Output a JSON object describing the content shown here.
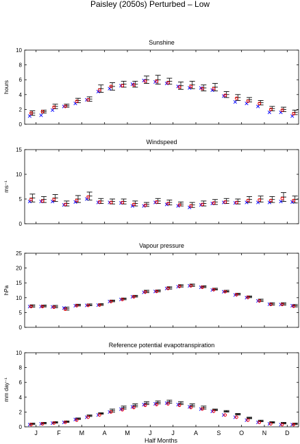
{
  "figure_title": "Paisley (2050s) Perturbed – Low",
  "x_axis_label": "Half Months",
  "month_labels": [
    "J",
    "F",
    "M",
    "A",
    "M",
    "J",
    "J",
    "A",
    "S",
    "O",
    "N",
    "D"
  ],
  "colors": {
    "observed": "#ff0000",
    "model": "#0000ff",
    "errorbar": "#000000"
  },
  "marker_styles": {
    "observed": "circle",
    "model": "cross",
    "errorbar": "error-bar"
  },
  "chart_data": [
    {
      "type": "scatter",
      "title": "Sunshine",
      "ylabel": "hours",
      "ylim": [
        0,
        10
      ],
      "yticks": [
        "0",
        "2",
        "4",
        "6",
        "8",
        "10"
      ],
      "x": [
        1,
        2,
        3,
        4,
        5,
        6,
        7,
        8,
        9,
        10,
        11,
        12,
        13,
        14,
        15,
        16,
        17,
        18,
        19,
        20,
        21,
        22,
        23,
        24
      ],
      "series": [
        {
          "values": [
            1.5,
            1.7,
            2.3,
            2.4,
            3.1,
            3.3,
            4.6,
            5.1,
            5.2,
            5.3,
            5.8,
            5.8,
            5.6,
            5.0,
            5.1,
            4.8,
            4.8,
            3.9,
            3.5,
            3.1,
            2.8,
            2.0,
            1.9,
            1.4
          ]
        },
        {
          "values": [
            1.1,
            1.2,
            1.9,
            2.4,
            2.8,
            3.3,
            4.4,
            4.8,
            5.2,
            5.4,
            5.9,
            5.7,
            5.5,
            5.1,
            4.9,
            4.9,
            4.6,
            3.8,
            3.0,
            2.8,
            2.4,
            1.6,
            1.6,
            1.1
          ]
        },
        {
          "values": [
            1.5,
            1.7,
            2.4,
            2.5,
            3.2,
            3.4,
            4.8,
            5.1,
            5.4,
            5.4,
            6.0,
            6.0,
            5.8,
            5.2,
            5.3,
            4.9,
            5.0,
            4.0,
            3.6,
            3.3,
            2.9,
            2.1,
            2.0,
            1.6
          ],
          "error": [
            0.3,
            0.2,
            0.3,
            0.2,
            0.3,
            0.3,
            0.5,
            0.5,
            0.4,
            0.4,
            0.5,
            0.6,
            0.4,
            0.5,
            0.5,
            0.4,
            0.5,
            0.4,
            0.4,
            0.3,
            0.3,
            0.3,
            0.3,
            0.3
          ]
        }
      ]
    },
    {
      "type": "scatter",
      "title": "Windspeed",
      "ylabel": "ms⁻¹",
      "ylim": [
        0,
        15
      ],
      "yticks": [
        "0",
        "5",
        "10",
        "15"
      ],
      "x": [
        1,
        2,
        3,
        4,
        5,
        6,
        7,
        8,
        9,
        10,
        11,
        12,
        13,
        14,
        15,
        16,
        17,
        18,
        19,
        20,
        21,
        22,
        23,
        24
      ],
      "series": [
        {
          "values": [
            4.9,
            4.6,
            4.9,
            3.9,
            4.7,
            5.4,
            4.4,
            4.3,
            4.3,
            3.9,
            3.7,
            4.4,
            4.1,
            3.8,
            3.6,
            3.9,
            4.2,
            4.4,
            4.3,
            4.7,
            4.8,
            4.7,
            5.1,
            4.7
          ]
        },
        {
          "values": [
            4.5,
            4.5,
            4.5,
            3.8,
            4.4,
            5.0,
            4.3,
            4.3,
            4.2,
            3.6,
            3.6,
            4.3,
            3.9,
            3.6,
            3.3,
            3.8,
            4.1,
            4.3,
            4.2,
            4.3,
            4.3,
            4.3,
            4.5,
            4.4
          ]
        },
        {
          "values": [
            5.2,
            4.9,
            5.2,
            4.1,
            5.0,
            5.6,
            4.6,
            4.5,
            4.5,
            4.1,
            3.9,
            4.6,
            4.3,
            4.0,
            3.8,
            4.1,
            4.4,
            4.6,
            4.5,
            4.9,
            5.0,
            4.9,
            5.4,
            4.9
          ],
          "error": [
            0.8,
            0.6,
            0.7,
            0.5,
            0.7,
            0.8,
            0.5,
            0.5,
            0.5,
            0.5,
            0.4,
            0.5,
            0.5,
            0.4,
            0.5,
            0.5,
            0.5,
            0.5,
            0.5,
            0.6,
            0.6,
            0.6,
            0.9,
            0.7
          ]
        }
      ]
    },
    {
      "type": "scatter",
      "title": "Vapour pressure",
      "ylabel": "hPa",
      "ylim": [
        0,
        25
      ],
      "yticks": [
        "0",
        "5",
        "10",
        "15",
        "20",
        "25"
      ],
      "x": [
        1,
        2,
        3,
        4,
        5,
        6,
        7,
        8,
        9,
        10,
        11,
        12,
        13,
        14,
        15,
        16,
        17,
        18,
        19,
        20,
        21,
        22,
        23,
        24
      ],
      "series": [
        {
          "values": [
            7.0,
            7.0,
            6.8,
            6.1,
            7.3,
            7.4,
            7.5,
            8.7,
            9.4,
            10.3,
            11.9,
            12.1,
            13.1,
            13.8,
            14.0,
            13.5,
            12.7,
            12.0,
            11.0,
            10.1,
            8.9,
            7.7,
            7.7,
            7.1
          ]
        },
        {
          "values": [
            7.0,
            7.0,
            6.9,
            6.5,
            7.3,
            7.4,
            7.5,
            8.7,
            9.4,
            10.3,
            11.8,
            12.1,
            13.1,
            13.7,
            14.0,
            13.5,
            12.6,
            12.0,
            10.9,
            10.0,
            8.9,
            7.8,
            7.7,
            7.3
          ]
        },
        {
          "values": [
            7.2,
            7.2,
            7.0,
            6.3,
            7.5,
            7.6,
            7.7,
            8.9,
            9.6,
            10.5,
            12.1,
            12.3,
            13.3,
            14.0,
            14.2,
            13.7,
            12.9,
            12.2,
            11.2,
            10.3,
            9.1,
            7.9,
            7.9,
            7.3
          ],
          "error": [
            0.4,
            0.3,
            0.4,
            0.5,
            0.3,
            0.3,
            0.3,
            0.3,
            0.3,
            0.3,
            0.4,
            0.3,
            0.4,
            0.4,
            0.4,
            0.3,
            0.3,
            0.3,
            0.3,
            0.3,
            0.4,
            0.4,
            0.4,
            0.4
          ]
        }
      ]
    },
    {
      "type": "scatter",
      "title": "Reference potential evapotranspiration",
      "ylabel": "mm day⁻¹",
      "ylim": [
        0,
        10
      ],
      "yticks": [
        "0",
        "2",
        "4",
        "6",
        "8",
        "10"
      ],
      "x": [
        1,
        2,
        3,
        4,
        5,
        6,
        7,
        8,
        9,
        10,
        11,
        12,
        13,
        14,
        15,
        16,
        17,
        18,
        19,
        20,
        21,
        22,
        23,
        24
      ],
      "series": [
        {
          "values": [
            0.3,
            0.4,
            0.5,
            0.6,
            0.9,
            1.3,
            1.6,
            2.0,
            2.3,
            2.6,
            2.9,
            3.0,
            3.1,
            2.9,
            2.6,
            2.4,
            2.1,
            1.6,
            1.3,
            0.9,
            0.6,
            0.4,
            0.3,
            0.3
          ]
        },
        {
          "values": [
            0.3,
            0.4,
            0.5,
            0.6,
            1.0,
            1.3,
            1.6,
            2.0,
            2.4,
            2.7,
            3.0,
            3.1,
            3.2,
            3.0,
            2.7,
            2.4,
            2.1,
            1.6,
            1.3,
            0.9,
            0.6,
            0.4,
            0.3,
            0.3
          ]
        },
        {
          "values": [
            0.4,
            0.5,
            0.6,
            0.7,
            1.1,
            1.5,
            1.8,
            2.2,
            2.6,
            2.9,
            3.2,
            3.3,
            3.4,
            3.2,
            2.9,
            2.6,
            2.3,
            2.1,
            1.7,
            1.2,
            0.8,
            0.6,
            0.5,
            0.4
          ],
          "error": [
            0.1,
            0.1,
            0.1,
            0.1,
            0.1,
            0.1,
            0.1,
            0.2,
            0.2,
            0.2,
            0.2,
            0.2,
            0.2,
            0.2,
            0.2,
            0.2,
            0.1,
            0.1,
            0.1,
            0.1,
            0.1,
            0.1,
            0.1,
            0.1
          ]
        }
      ]
    }
  ]
}
